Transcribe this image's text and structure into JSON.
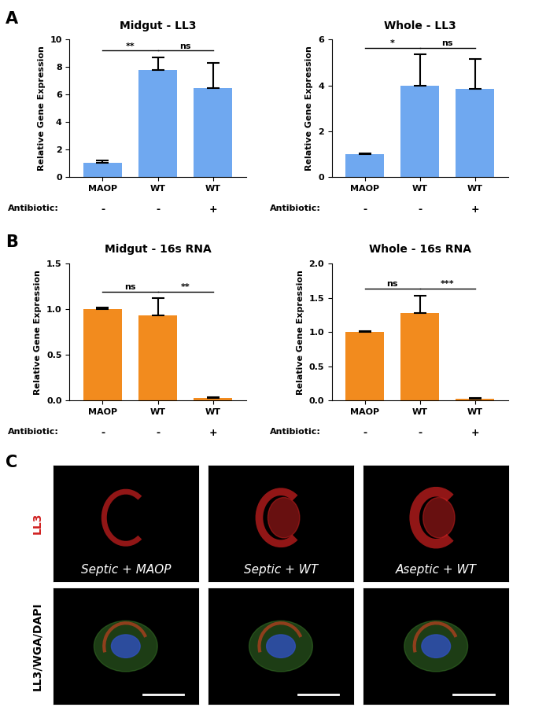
{
  "chart_data": [
    {
      "type": "bar",
      "title": "Midgut - LL3",
      "y_label": "Relative Gene Expression",
      "categories": [
        "MAOP",
        "WT",
        "WT"
      ],
      "values": [
        1.0,
        7.8,
        6.5
      ],
      "errors": [
        0.2,
        0.9,
        1.8
      ],
      "color": "#6fa8f0",
      "ylim": [
        0,
        10
      ],
      "yticks": [
        0,
        2,
        4,
        6,
        8,
        10
      ],
      "annotations": {
        "label": "Antibiotic:",
        "texts": [
          "-",
          "-",
          "+"
        ],
        "significance": [
          "**",
          "ns"
        ]
      }
    },
    {
      "type": "bar",
      "title": "Whole - LL3",
      "y_label": "Relative Gene Expression",
      "categories": [
        "MAOP",
        "WT",
        "WT"
      ],
      "values": [
        1.0,
        4.0,
        3.85
      ],
      "errors": [
        0.03,
        1.35,
        1.3
      ],
      "color": "#6fa8f0",
      "ylim": [
        0,
        6
      ],
      "yticks": [
        0,
        2,
        4,
        6
      ],
      "annotations": {
        "label": "Antibiotic:",
        "texts": [
          "-",
          "-",
          "+"
        ],
        "significance": [
          "*",
          "ns"
        ]
      }
    },
    {
      "type": "bar",
      "title": "Midgut - 16s RNA",
      "y_label": "Relative Gene Expression",
      "categories": [
        "MAOP",
        "WT",
        "WT"
      ],
      "values": [
        1.0,
        0.93,
        0.03
      ],
      "errors": [
        0.02,
        0.19,
        0.01
      ],
      "color": "#f28b1e",
      "ylim": [
        0,
        1.5
      ],
      "yticks": [
        {
          "value": 0,
          "label": "0.0"
        },
        0.5,
        {
          "value": 1,
          "label": "1.0"
        },
        1.5
      ],
      "annotations": {
        "label": "Antibiotic:",
        "texts": [
          "-",
          "-",
          "+"
        ],
        "significance": [
          "ns",
          "**"
        ]
      }
    },
    {
      "type": "bar",
      "title": "Whole - 16s RNA",
      "y_label": "Relative Gene Expression",
      "categories": [
        "MAOP",
        "WT",
        "WT"
      ],
      "values": [
        1.0,
        1.28,
        0.03
      ],
      "errors": [
        0.01,
        0.25,
        0.01
      ],
      "color": "#f28b1e",
      "ylim": [
        0,
        2.0
      ],
      "yticks": [
        {
          "value": 0,
          "label": "0.0"
        },
        0.5,
        {
          "value": 1,
          "label": "1.0"
        },
        1.5,
        {
          "value": 2,
          "label": "2.0"
        }
      ],
      "annotations": {
        "label": "Antibiotic:",
        "texts": [
          "-",
          "-",
          "+"
        ],
        "significance": [
          "ns",
          "***"
        ]
      }
    }
  ],
  "panel_labels": [
    "A",
    "B",
    "C"
  ],
  "image_panel": {
    "row_labels": [
      "LL3",
      "LL3/WGA/DAPI"
    ],
    "conditions": [
      "Septic + MAOP",
      "Septic + WT",
      "Aseptic + WT"
    ]
  }
}
